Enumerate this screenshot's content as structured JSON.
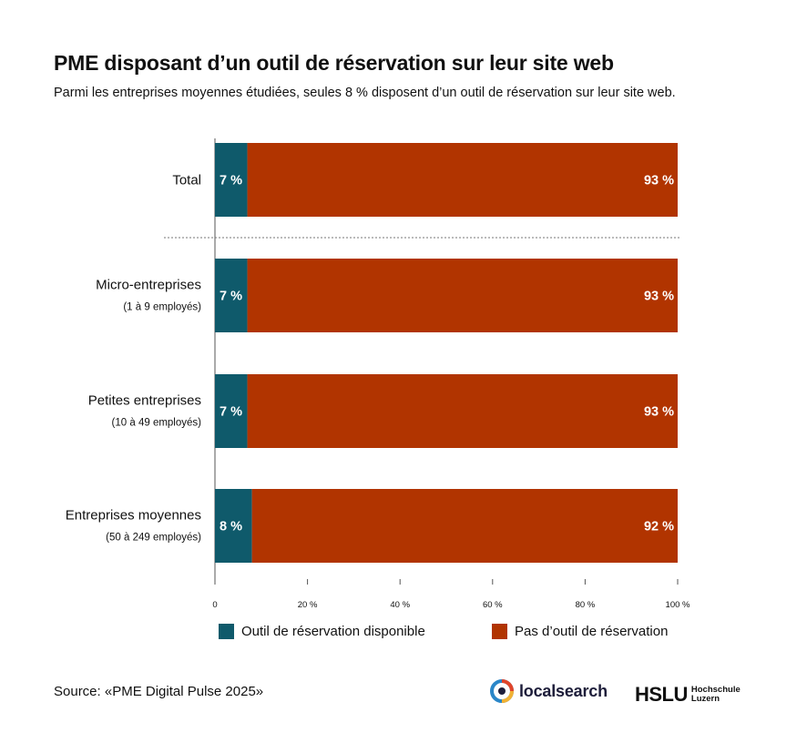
{
  "title": "PME disposant d’un outil de réservation sur leur site web",
  "subtitle": "Parmi les entreprises moyennes étudiées, seules 8 % disposent d’un outil de réservation sur leur site web.",
  "chart_data": {
    "type": "bar",
    "orientation": "horizontal",
    "stacked": true,
    "categories": [
      {
        "label": "Total",
        "sublabel": ""
      },
      {
        "label": "Micro-entreprises",
        "sublabel": "(1 à 9 employés)"
      },
      {
        "label": "Petites entreprises",
        "sublabel": "(10 à 49 employés)"
      },
      {
        "label": "Entreprises moyennes",
        "sublabel": "(50 à 249 employés)"
      }
    ],
    "series": [
      {
        "name": "Outil de réservation disponible",
        "color": "#0f5a6b",
        "values": [
          7,
          7,
          7,
          8
        ],
        "labels": [
          "7 %",
          "7 %",
          "7 %",
          "8 %"
        ]
      },
      {
        "name": "Pas d’outil de réservation",
        "color": "#b13400",
        "values": [
          93,
          93,
          93,
          92
        ],
        "labels": [
          "93 %",
          "93 %",
          "93 %",
          "92 %"
        ]
      }
    ],
    "xlim": [
      0,
      100
    ],
    "xticks": [
      {
        "value": 0,
        "label": "0"
      },
      {
        "value": 20,
        "label": "20 %"
      },
      {
        "value": 40,
        "label": "40 %"
      },
      {
        "value": 60,
        "label": "60 %"
      },
      {
        "value": 80,
        "label": "80 %"
      },
      {
        "value": 100,
        "label": "100 %"
      }
    ],
    "separator_after_category": 0,
    "legend_position": "bottom"
  },
  "source": "Source: «PME Digital Pulse 2025»",
  "logos": {
    "localsearch": "localsearch",
    "hslu": "HSLU",
    "hslu_sub_1": "Hochschule",
    "hslu_sub_2": "Luzern"
  }
}
